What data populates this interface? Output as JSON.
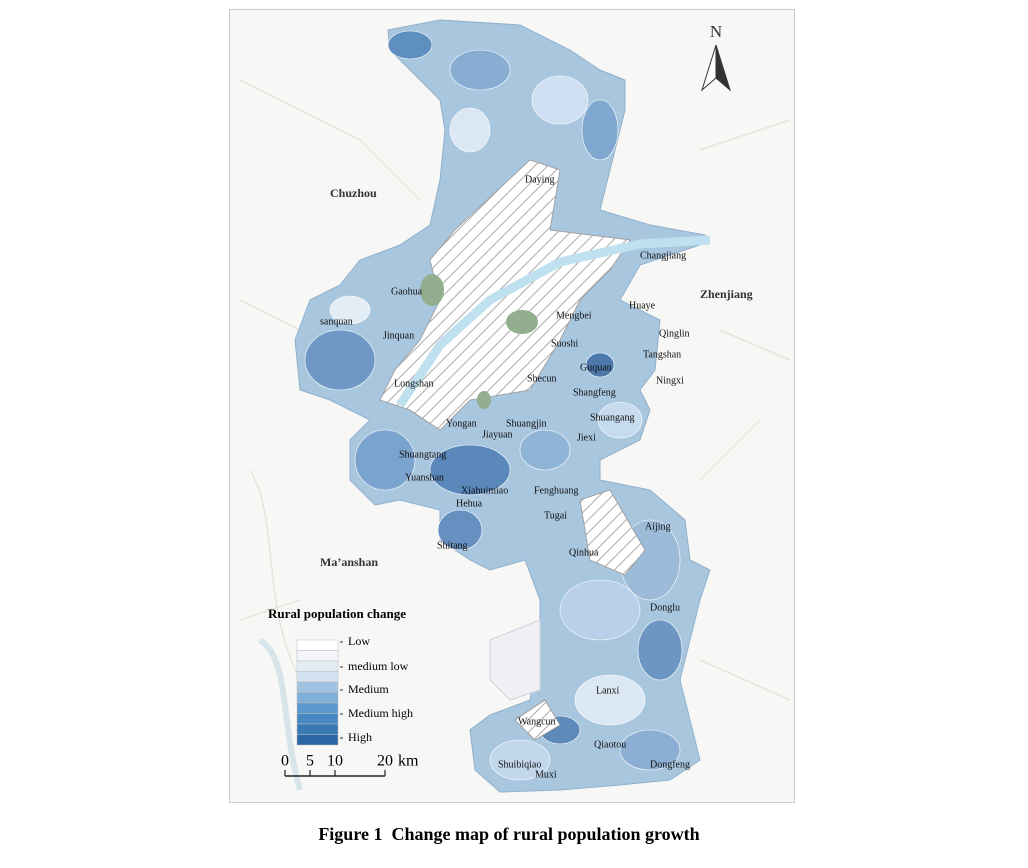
{
  "map": {
    "north_label": "N",
    "region_labels": [
      "Chuzhou",
      "Zhenjiang",
      "Ma’anshan"
    ],
    "place_labels": [
      "Daying",
      "Changjiang",
      "Gaohua",
      "Huaye",
      "Mengbei",
      "sanquan",
      "Qinglin",
      "Jinquan",
      "Suoshi",
      "Tangshan",
      "Guquan",
      "Shecun",
      "Ningxi",
      "Longshan",
      "Shangfeng",
      "Shuangang",
      "Yongan",
      "Shuangjin",
      "Jiayuan",
      "Jiexi",
      "Shuangtang",
      "Yuanshan",
      "Xiahuimiao",
      "Fenghuang",
      "Hehua",
      "Tugai",
      "Aijing",
      "Shitang",
      "Qinhua",
      "Donglu",
      "Lanxi",
      "Wangcun",
      "Qiaotou",
      "Dongfeng",
      "Shuibiqiao",
      "Muxi"
    ]
  },
  "legend": {
    "title": "Rural population change",
    "classes": [
      "Low",
      "medium low",
      "Medium",
      "Medium high",
      "High"
    ]
  },
  "scale_bar": {
    "ticks": [
      0,
      5,
      10,
      20
    ],
    "unit": "km"
  },
  "caption": "Figure 1  Change map of rural population growth"
}
